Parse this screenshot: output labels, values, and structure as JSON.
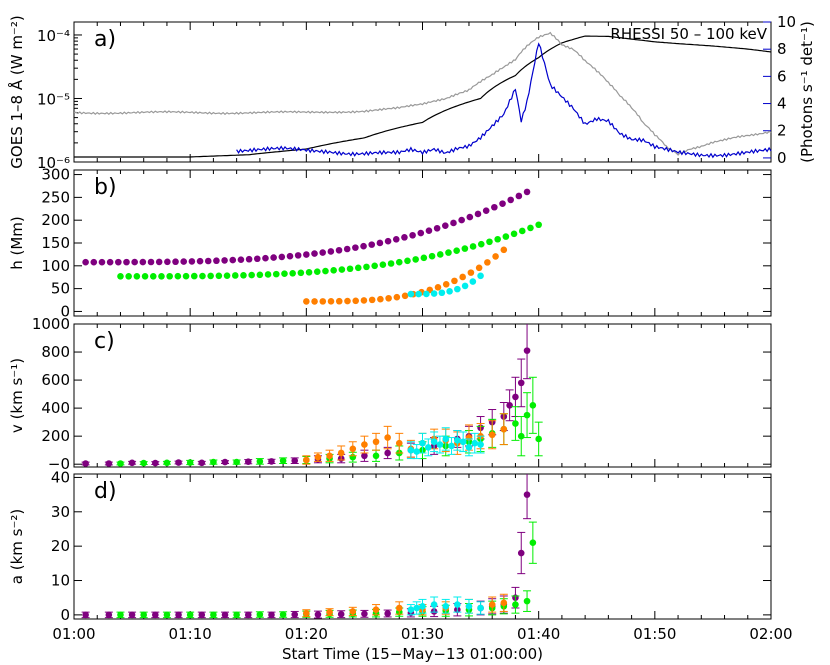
{
  "chart_data": [
    {
      "id": "a",
      "type": "line",
      "panel_label": "a)",
      "ylabel": "GOES 1–8 Å (W m⁻²)",
      "y2label": "(Photons s⁻¹ det⁻¹)",
      "y2_title": "RHESSI 50 – 100 keV",
      "yscale": "log",
      "ylim": [
        1e-06,
        0.00016
      ],
      "y_ticks": [
        "10⁻⁴",
        "10⁻⁵",
        "10⁻⁶"
      ],
      "y2lim": [
        -0.3,
        10
      ],
      "y2_ticks": [
        "10",
        "8",
        "6",
        "4",
        "2",
        "0"
      ],
      "colors": {
        "goes_long": "#000000",
        "goes_short": "#999999",
        "rhessi": "#0000cc"
      },
      "series": [
        {
          "key": "goes_long",
          "x": [
            0,
            5,
            10,
            15,
            20,
            25,
            30,
            35,
            38,
            40,
            42,
            44,
            46,
            48,
            50,
            52,
            55,
            58,
            60
          ],
          "y": [
            1.2e-06,
            1.2e-06,
            1.2e-06,
            1.3e-06,
            1.6e-06,
            2.4e-06,
            4.2e-06,
            1e-05,
            2.3e-05,
            4.4e-05,
            7.5e-05,
            9.6e-05,
            9.5e-05,
            8.6e-05,
            7.8e-05,
            7.3e-05,
            6.7e-05,
            6e-05,
            5.4e-05
          ]
        },
        {
          "key": "goes_short",
          "x": [
            0,
            5,
            10,
            15,
            20,
            25,
            28,
            30,
            32,
            34,
            35,
            36,
            37,
            38,
            39,
            40,
            41,
            42,
            43,
            44,
            45,
            46,
            47,
            48,
            49,
            50,
            51,
            52,
            53,
            54,
            55,
            56,
            57,
            58,
            59,
            60
          ],
          "y": [
            6e-06,
            6e-06,
            6e-06,
            6e-06,
            6e-06,
            6.4e-06,
            7e-06,
            8e-06,
            1e-05,
            1.4e-05,
            1.9e-05,
            2.4e-05,
            3.1e-05,
            4e-05,
            6.5e-05,
            9e-05,
            0.000105,
            7e-05,
            6e-05,
            4e-05,
            2.8e-05,
            1.8e-05,
            1.1e-05,
            7e-06,
            4e-06,
            2.6e-06,
            1.7e-06,
            1.3e-06,
            1.6e-06,
            1.8e-06,
            2.1e-06,
            2.3e-06,
            2.5e-06,
            2.6e-06,
            2.7e-06,
            2.9e-06
          ]
        },
        {
          "key": "rhessi",
          "x": [
            14,
            18,
            20,
            22,
            24,
            26,
            28,
            29,
            30,
            31,
            32,
            33,
            34,
            35,
            36,
            37,
            38,
            38.5,
            39,
            40,
            41,
            42,
            43,
            44,
            45,
            46,
            47,
            48,
            49,
            50,
            52,
            54,
            56,
            58,
            60
          ],
          "y": [
            0.6,
            0.6,
            0.5,
            0.5,
            0.4,
            0.4,
            0.3,
            0.5,
            0.3,
            0.6,
            0.4,
            0.8,
            1.0,
            1.6,
            2.4,
            3.2,
            5.0,
            2.6,
            4.0,
            8.4,
            5.3,
            4.5,
            3.7,
            2.6,
            3.0,
            2.8,
            1.8,
            1.3,
            1.2,
            0.7,
            0.4,
            0.3,
            0.3,
            0.4,
            0.5
          ]
        }
      ]
    },
    {
      "id": "b",
      "type": "scatter",
      "panel_label": "b)",
      "ylabel": "h (Mm)",
      "ylim": [
        -10,
        310
      ],
      "y_ticks": [
        0,
        50,
        100,
        150,
        200,
        250,
        300
      ],
      "series": [
        {
          "color": "#7f007f",
          "start": 1,
          "end": 39,
          "h_start": 108,
          "h_end": 262
        },
        {
          "color": "#00ee00",
          "start": 4,
          "end": 40,
          "h_start": 77,
          "h_end": 190
        },
        {
          "color": "#ff7f00",
          "start": 20,
          "end": 37,
          "h_start": 22,
          "h_end": 135
        },
        {
          "color": "#00eeee",
          "start": 29,
          "end": 35,
          "h_start": 38,
          "h_end": 78
        }
      ]
    },
    {
      "id": "c",
      "type": "scatter",
      "panel_label": "c)",
      "ylabel": "v (km s⁻¹)",
      "ylim": [
        -20,
        1000
      ],
      "y_ticks": [
        0,
        200,
        400,
        600,
        800,
        1000
      ],
      "y_tick_labels": [
        "−0",
        "200",
        "400",
        "600",
        "800",
        "1000"
      ],
      "series": [
        {
          "color": "#7f007f",
          "x": [
            1,
            3,
            5,
            7,
            9,
            11,
            13,
            15,
            17,
            19,
            21,
            23,
            25,
            27,
            29,
            31,
            33,
            34,
            35,
            36,
            37,
            37.5,
            38,
            38.5,
            39
          ],
          "y": [
            5,
            5,
            10,
            8,
            12,
            10,
            15,
            18,
            20,
            25,
            35,
            40,
            60,
            80,
            100,
            130,
            180,
            200,
            260,
            300,
            340,
            420,
            480,
            580,
            810
          ],
          "err": [
            10,
            10,
            10,
            10,
            10,
            10,
            10,
            15,
            15,
            20,
            25,
            30,
            40,
            40,
            50,
            60,
            60,
            70,
            80,
            90,
            100,
            110,
            140,
            170,
            200
          ]
        },
        {
          "color": "#00ee00",
          "x": [
            4,
            6,
            8,
            10,
            12,
            14,
            16,
            18,
            20,
            22,
            24,
            26,
            28,
            30,
            32,
            34,
            35,
            36,
            37,
            38,
            38.5,
            39,
            39.5,
            40
          ],
          "y": [
            5,
            8,
            10,
            12,
            15,
            15,
            20,
            25,
            30,
            40,
            50,
            60,
            80,
            100,
            130,
            160,
            180,
            220,
            250,
            290,
            200,
            350,
            420,
            180
          ],
          "err": [
            10,
            10,
            10,
            15,
            15,
            15,
            20,
            20,
            25,
            30,
            35,
            40,
            50,
            60,
            70,
            80,
            90,
            100,
            110,
            120,
            140,
            160,
            200,
            120
          ]
        },
        {
          "color": "#ff7f00",
          "x": [
            20,
            21,
            22,
            23,
            24,
            25,
            26,
            27,
            28,
            29,
            30,
            31,
            32,
            33,
            34,
            35,
            36,
            37
          ],
          "y": [
            30,
            50,
            60,
            80,
            110,
            140,
            160,
            190,
            150,
            110,
            150,
            180,
            170,
            150,
            190,
            200,
            210,
            250
          ],
          "err": [
            30,
            30,
            40,
            50,
            50,
            60,
            60,
            80,
            70,
            60,
            70,
            70,
            80,
            80,
            90,
            90,
            100,
            110
          ]
        },
        {
          "color": "#00eeee",
          "x": [
            29,
            29.5,
            30,
            30.5,
            31,
            31.5,
            32,
            32.5,
            33,
            33.5,
            34,
            34.5,
            35
          ],
          "y": [
            100,
            90,
            150,
            120,
            160,
            140,
            180,
            130,
            170,
            160,
            120,
            150,
            140
          ],
          "err": [
            60,
            50,
            70,
            60,
            70,
            60,
            80,
            60,
            70,
            70,
            60,
            70,
            60
          ]
        }
      ]
    },
    {
      "id": "d",
      "type": "scatter",
      "panel_label": "d)",
      "ylabel": "a (km s⁻²)",
      "ylim": [
        -1.2,
        41
      ],
      "y_ticks": [
        0,
        10,
        20,
        30,
        40
      ],
      "x_ticks": [
        "01:00",
        "01:10",
        "01:20",
        "01:30",
        "01:40",
        "01:50",
        "02:00"
      ],
      "xlabel": "Start Time (15−May−13 01:00:00)",
      "series": [
        {
          "color": "#7f007f",
          "x": [
            1,
            3,
            5,
            7,
            9,
            11,
            13,
            15,
            17,
            19,
            21,
            23,
            25,
            27,
            29,
            31,
            33,
            35,
            36,
            37,
            38,
            38.5,
            39
          ],
          "y": [
            0,
            0,
            0,
            0,
            0,
            0,
            0,
            0,
            0,
            0.1,
            0.1,
            0.2,
            0.3,
            0.4,
            0.6,
            1,
            1.5,
            2,
            2.5,
            3,
            5,
            18,
            35
          ],
          "err": [
            0.8,
            0.8,
            0.8,
            0.8,
            0.8,
            0.8,
            0.8,
            0.8,
            0.8,
            0.9,
            1,
            1,
            1,
            1,
            1.2,
            1.5,
            1.8,
            2,
            2.2,
            2.5,
            3,
            6,
            7
          ]
        },
        {
          "color": "#00ee00",
          "x": [
            4,
            6,
            8,
            10,
            12,
            14,
            16,
            18,
            20,
            22,
            24,
            26,
            28,
            30,
            32,
            34,
            36,
            37,
            38,
            39,
            39.5
          ],
          "y": [
            0,
            0,
            0,
            0,
            0,
            0,
            0.1,
            0.1,
            0.2,
            0.3,
            0.4,
            0.5,
            0.8,
            1,
            1.2,
            1.5,
            2,
            2.5,
            3,
            4,
            21
          ],
          "err": [
            0.8,
            0.8,
            0.8,
            0.8,
            0.8,
            0.8,
            0.8,
            0.8,
            0.9,
            1,
            1,
            1.1,
            1.2,
            1.4,
            1.6,
            1.8,
            2,
            2.2,
            2.5,
            3,
            6
          ]
        },
        {
          "color": "#ff7f00",
          "x": [
            20,
            22,
            24,
            26,
            28,
            30,
            32,
            34,
            36,
            37
          ],
          "y": [
            0.5,
            0.8,
            1,
            1.5,
            2,
            1.5,
            2,
            2.5,
            3,
            3.5
          ],
          "err": [
            1,
            1,
            1.2,
            1.5,
            1.8,
            1.5,
            1.8,
            2,
            2.2,
            2.5
          ]
        },
        {
          "color": "#00eeee",
          "x": [
            29,
            29.5,
            30,
            31,
            32,
            33,
            34,
            35
          ],
          "y": [
            1.5,
            2,
            2.5,
            3,
            2.5,
            3,
            2.5,
            2
          ],
          "err": [
            1.5,
            1.8,
            2,
            2.2,
            2,
            2.2,
            2,
            1.8
          ]
        }
      ]
    }
  ]
}
